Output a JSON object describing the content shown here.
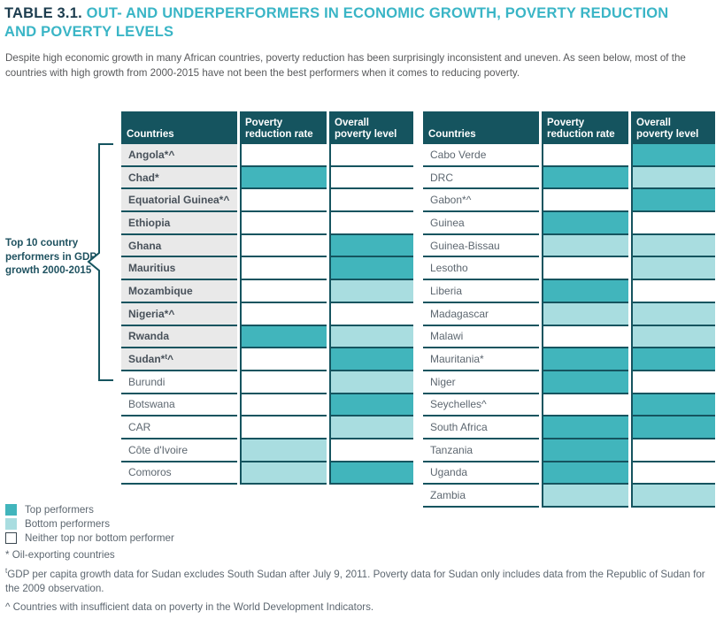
{
  "title": {
    "prefix": "TABLE 3.1.",
    "text": " OUT- AND UNDERPERFORMERS IN ECONOMIC GROWTH, POVERTY REDUCTION AND POVERTY LEVELS"
  },
  "intro": "Despite high economic growth in many African countries, poverty reduction has been surprisingly inconsistent and uneven. As seen below, most of the countries with high growth from 2000-2015 have not been the best performers when it comes to reducing poverty.",
  "annotation": "Top 10 country performers in GDP growth 2000-2015",
  "columns": [
    "Countries",
    "Poverty reduction rate",
    "Overall poverty level"
  ],
  "tables": [
    {
      "rows": [
        {
          "country": "Angola*^",
          "top10": true,
          "reduction": "none",
          "level": "none"
        },
        {
          "country": "Chad*",
          "top10": true,
          "reduction": "top",
          "level": "none"
        },
        {
          "country": "Equatorial Guinea*^",
          "top10": true,
          "reduction": "none",
          "level": "none"
        },
        {
          "country": "Ethiopia",
          "top10": true,
          "reduction": "none",
          "level": "none"
        },
        {
          "country": "Ghana",
          "top10": true,
          "reduction": "none",
          "level": "top"
        },
        {
          "country": "Mauritius",
          "top10": true,
          "reduction": "none",
          "level": "top"
        },
        {
          "country": "Mozambique",
          "top10": true,
          "reduction": "none",
          "level": "bottom"
        },
        {
          "country": "Nigeria*^",
          "top10": true,
          "reduction": "none",
          "level": "none"
        },
        {
          "country": "Rwanda",
          "top10": true,
          "reduction": "top",
          "level": "bottom"
        },
        {
          "country": "Sudan*",
          "sup": "t",
          "tail": "^",
          "top10": true,
          "reduction": "none",
          "level": "top"
        },
        {
          "country": "Burundi",
          "top10": false,
          "reduction": "none",
          "level": "bottom"
        },
        {
          "country": "Botswana",
          "top10": false,
          "reduction": "none",
          "level": "top"
        },
        {
          "country": "CAR",
          "top10": false,
          "reduction": "none",
          "level": "bottom"
        },
        {
          "country": "Côte d'Ivoire",
          "top10": false,
          "reduction": "bottom",
          "level": "none"
        },
        {
          "country": "Comoros",
          "top10": false,
          "reduction": "bottom",
          "level": "top"
        }
      ]
    },
    {
      "rows": [
        {
          "country": "Cabo Verde",
          "top10": false,
          "reduction": "none",
          "level": "top"
        },
        {
          "country": "DRC",
          "top10": false,
          "reduction": "top",
          "level": "bottom"
        },
        {
          "country": "Gabon*^",
          "top10": false,
          "reduction": "none",
          "level": "top"
        },
        {
          "country": "Guinea",
          "top10": false,
          "reduction": "top",
          "level": "none"
        },
        {
          "country": "Guinea-Bissau",
          "top10": false,
          "reduction": "bottom",
          "level": "bottom"
        },
        {
          "country": "Lesotho",
          "top10": false,
          "reduction": "none",
          "level": "bottom"
        },
        {
          "country": "Liberia",
          "top10": false,
          "reduction": "top",
          "level": "none"
        },
        {
          "country": "Madagascar",
          "top10": false,
          "reduction": "bottom",
          "level": "bottom"
        },
        {
          "country": "Malawi",
          "top10": false,
          "reduction": "none",
          "level": "bottom"
        },
        {
          "country": "Mauritania*",
          "top10": false,
          "reduction": "top",
          "level": "top"
        },
        {
          "country": "Niger",
          "top10": false,
          "reduction": "top",
          "level": "none"
        },
        {
          "country": "Seychelles^",
          "top10": false,
          "reduction": "none",
          "level": "top"
        },
        {
          "country": "South Africa",
          "top10": false,
          "reduction": "top",
          "level": "top"
        },
        {
          "country": "Tanzania",
          "top10": false,
          "reduction": "top",
          "level": "none"
        },
        {
          "country": "Uganda",
          "top10": false,
          "reduction": "top",
          "level": "none"
        },
        {
          "country": "Zambia",
          "top10": false,
          "reduction": "bottom",
          "level": "bottom"
        }
      ]
    }
  ],
  "legend": [
    {
      "type": "top",
      "label": "Top performers"
    },
    {
      "type": "bottom",
      "label": "Bottom performers"
    },
    {
      "type": "none",
      "label": "Neither top nor bottom performer"
    }
  ],
  "notes": {
    "oil": "* Oil-exporting countries",
    "sudan_sup": "t",
    "sudan": "GDP per capita growth data for Sudan excludes South Sudan after July 9, 2011. Poverty data for Sudan only includes data from the Republic of Sudan for the 2009 observation.",
    "insufficient": "^ Countries with insufficient data on poverty in the World Development Indicators."
  },
  "colors": {
    "header_dark": "#15545f",
    "top_performer": "#41b5bc",
    "bottom_performer": "#a9dde0",
    "top10_row_bg": "#e9e9e9",
    "title_accent": "#3ab5c6",
    "title_dark": "#1c3c4e"
  }
}
